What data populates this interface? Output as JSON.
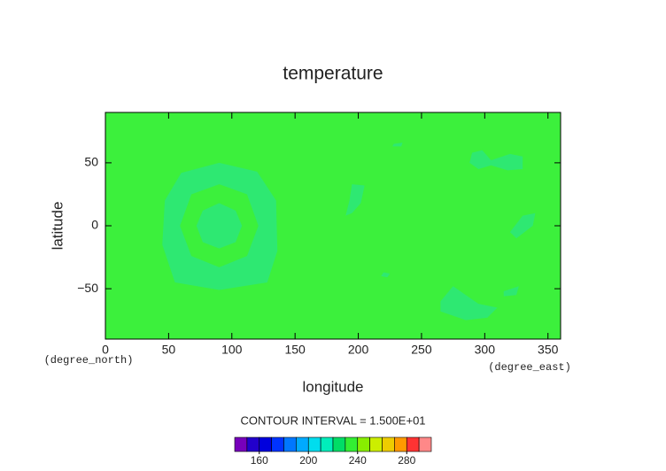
{
  "chart_data": {
    "type": "contour",
    "title": "temperature",
    "xlabel": "longitude",
    "ylabel": "latitude",
    "x_units": "(degree_east)",
    "y_units": "(degree_north)",
    "xlim": [
      0,
      360
    ],
    "xticks": [
      0,
      50,
      100,
      150,
      200,
      250,
      300,
      350
    ],
    "ylim": [
      -90,
      90
    ],
    "yticks": [
      {
        "value": -50,
        "label": "−50"
      },
      0,
      50
    ],
    "field_color": "#3cf03c",
    "regions": [
      {
        "color": "#2ee872",
        "lon": [
          90,
          120,
          135,
          136,
          128,
          90,
          55,
          45,
          47,
          60
        ],
        "lat": [
          50,
          43,
          20,
          -20,
          -45,
          -51,
          -45,
          -15,
          20,
          42
        ]
      },
      {
        "color": "#3cf03c",
        "lon": [
          90,
          112,
          121,
          112,
          90,
          68,
          59,
          68
        ],
        "lat": [
          33,
          25,
          0,
          -24,
          -33,
          -24,
          0,
          25
        ]
      },
      {
        "color": "#2ee872",
        "lon": [
          90,
          103,
          108,
          103,
          90,
          77,
          72,
          77
        ],
        "lat": [
          18,
          12,
          0,
          -13,
          -18,
          -13,
          0,
          12
        ]
      },
      {
        "color": "#2ee872",
        "lon": [
          195,
          205,
          202,
          195,
          190,
          193
        ],
        "lat": [
          33,
          32,
          18,
          10,
          8,
          20
        ]
      },
      {
        "color": "#2ee872",
        "lon": [
          290,
          298,
          305,
          320,
          330,
          330,
          318,
          305,
          295,
          288
        ],
        "lat": [
          58,
          60,
          52,
          57,
          55,
          45,
          44,
          48,
          45,
          50
        ]
      },
      {
        "color": "#2ee872",
        "lon": [
          330,
          340,
          338,
          325,
          320
        ],
        "lat": [
          8,
          10,
          0,
          -10,
          -5
        ]
      },
      {
        "color": "#2ee872",
        "lon": [
          220,
          225,
          223,
          218
        ],
        "lat": [
          -37,
          -38,
          -41,
          -40
        ]
      },
      {
        "color": "#2ee872",
        "lon": [
          265,
          275,
          285,
          295,
          310,
          302,
          285,
          265
        ],
        "lat": [
          -60,
          -48,
          -55,
          -62,
          -65,
          -73,
          -75,
          -68
        ]
      },
      {
        "color": "#2ee872",
        "lon": [
          315,
          327,
          325,
          315
        ],
        "lat": [
          -52,
          -48,
          -55,
          -56
        ]
      },
      {
        "color": "#2ee872",
        "lon": [
          228,
          235,
          234,
          227
        ],
        "lat": [
          65,
          66,
          63,
          63
        ]
      }
    ],
    "contour_note": "CONTOUR INTERVAL = 1.500E+01",
    "colorbar": {
      "lim": [
        140,
        300
      ],
      "ticks": [
        160,
        200,
        240,
        280
      ],
      "bounds": [
        140,
        150,
        160,
        170,
        180,
        190,
        200,
        210,
        220,
        230,
        240,
        250,
        260,
        270,
        280,
        290,
        300
      ],
      "colors": [
        "#7700bb",
        "#2200cc",
        "#0000dd",
        "#0033ff",
        "#0077ff",
        "#00aaff",
        "#00ddee",
        "#00eebb",
        "#00dd66",
        "#33ee33",
        "#88ee00",
        "#ccee00",
        "#eecc00",
        "#ff9900",
        "#ff3333",
        "#ff8888"
      ]
    }
  }
}
